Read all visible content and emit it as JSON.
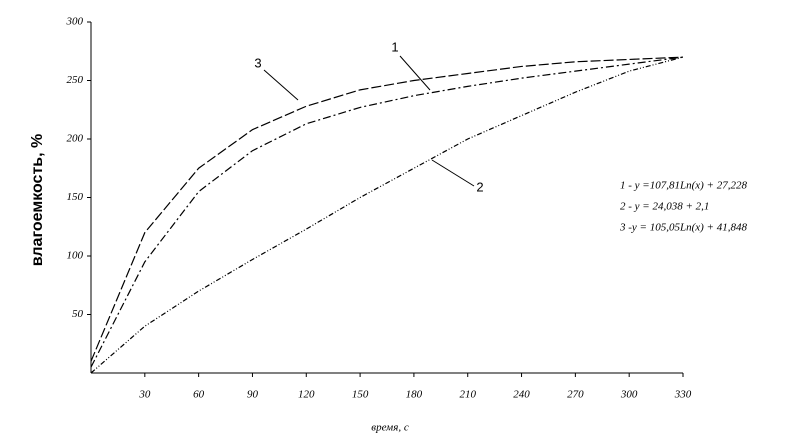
{
  "chart_data": {
    "type": "line",
    "x_label": "время, с",
    "y_label": "влагоемкость, %",
    "x": [
      0,
      30,
      60,
      90,
      120,
      150,
      180,
      210,
      240,
      270,
      300,
      330
    ],
    "series": [
      {
        "name": "1",
        "color": "#000000",
        "values": [
          5,
          95,
          155,
          190,
          213,
          227,
          237,
          245,
          252,
          258,
          264,
          270
        ]
      },
      {
        "name": "2",
        "color": "#000000",
        "values": [
          0,
          40,
          70,
          97,
          123,
          150,
          175,
          200,
          220,
          240,
          258,
          270
        ]
      },
      {
        "name": "3",
        "color": "#000000",
        "values": [
          10,
          120,
          175,
          208,
          228,
          242,
          250,
          256,
          262,
          266,
          268,
          270
        ]
      }
    ],
    "annotations": [
      "1 - y =107,81Ln(x) + 27,228",
      "2 - y = 24,038 + 2,1",
      "3 -y = 105,05Ln(x) + 41,848"
    ],
    "xlim": [
      0,
      330
    ],
    "xticks": [
      30,
      60,
      90,
      120,
      150,
      180,
      210,
      240,
      270,
      300,
      330
    ],
    "ylim": [
      0,
      300
    ],
    "yticks": [
      50,
      100,
      150,
      200,
      250,
      300
    ],
    "grid": false
  }
}
